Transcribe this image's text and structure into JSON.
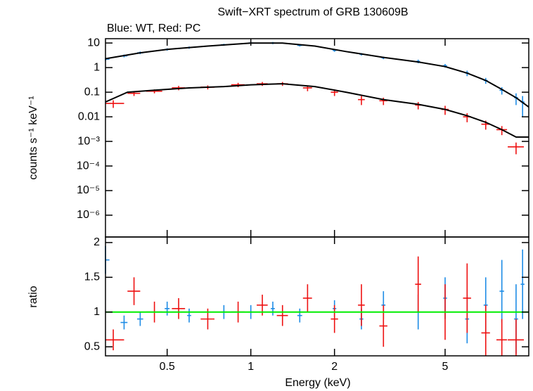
{
  "chart_data": [
    {
      "type": "scatter",
      "title": "Swift−XRT spectrum of GRB 130609B",
      "subtitle": "Blue: WT, Red: PC",
      "ylabel": "counts s⁻¹ keV⁻¹",
      "log_x": true,
      "log_y": true,
      "xlim": [
        0.3,
        10
      ],
      "ylim": [
        1.3e-07,
        15
      ],
      "xticks": [
        0.5,
        1,
        2,
        5
      ],
      "yticks": [
        10,
        1,
        0.1,
        0.01,
        {
          "value": 0.001,
          "label": "10⁻³"
        },
        {
          "value": 0.0001,
          "label": "10⁻⁴"
        },
        {
          "value": 1e-05,
          "label": "10⁻⁵"
        },
        {
          "value": 1e-06,
          "label": "10⁻⁶"
        }
      ],
      "series": [
        {
          "color": "#1e8ce6",
          "x": [
            0.3,
            0.35,
            0.4,
            0.5,
            0.6,
            0.8,
            1.0,
            1.2,
            1.5,
            2,
            2.5,
            3,
            4,
            5,
            6,
            7,
            8,
            9,
            9.5
          ],
          "xerr": [
            0.01,
            0.01,
            0.01,
            0.01,
            0.01,
            0.02,
            0.02,
            0.02,
            0.03,
            0.03,
            0.04,
            0.05,
            0.06,
            0.08,
            0.1,
            0.12,
            0.15,
            0.15,
            0.15
          ],
          "values": [
            2.2,
            3,
            4,
            5.5,
            6.5,
            8.5,
            10,
            10,
            8,
            5,
            3.5,
            2.5,
            1.8,
            1.2,
            0.6,
            0.3,
            0.12,
            0.06,
            0.04
          ],
          "errors": [
            0.3,
            0.4,
            0.5,
            0.6,
            0.7,
            0.8,
            1,
            1,
            0.8,
            0.6,
            0.4,
            0.3,
            0.3,
            0.2,
            0.15,
            0.08,
            0.04,
            0.03,
            0.03
          ]
        },
        {
          "color": "#ee1111",
          "x": [
            0.32,
            0.38,
            0.45,
            0.55,
            0.7,
            0.9,
            1.1,
            1.3,
            1.6,
            2,
            2.5,
            3,
            4,
            5,
            6,
            7,
            8,
            9
          ],
          "xerr": [
            0.03,
            0.02,
            0.03,
            0.03,
            0.04,
            0.05,
            0.05,
            0.06,
            0.06,
            0.06,
            0.07,
            0.1,
            0.1,
            0.15,
            0.2,
            0.25,
            0.35,
            0.6
          ],
          "values": [
            0.035,
            0.09,
            0.11,
            0.15,
            0.16,
            0.2,
            0.22,
            0.22,
            0.15,
            0.1,
            0.05,
            0.045,
            0.03,
            0.02,
            0.01,
            0.005,
            0.003,
            0.0006
          ],
          "errors": [
            0.012,
            0.02,
            0.02,
            0.03,
            0.03,
            0.04,
            0.04,
            0.04,
            0.04,
            0.03,
            0.02,
            0.015,
            0.01,
            0.008,
            0.004,
            0.002,
            0.0012,
            0.0003
          ]
        },
        {
          "type": "line",
          "color": "#000000",
          "x": [
            0.3,
            0.4,
            0.5,
            0.7,
            1,
            1.3,
            1.7,
            2.2,
            3,
            4,
            5,
            6,
            7,
            8,
            9,
            10
          ],
          "values": [
            2.3,
            4,
            5.5,
            7.5,
            10,
            10,
            7.5,
            4.5,
            2.6,
            1.7,
            1.1,
            0.6,
            0.3,
            0.13,
            0.06,
            0.025
          ]
        },
        {
          "type": "line",
          "color": "#000000",
          "x": [
            0.3,
            0.36,
            0.45,
            0.6,
            0.8,
            1,
            1.3,
            1.7,
            2.2,
            3,
            4,
            5,
            6,
            7,
            8,
            9,
            10
          ],
          "values": [
            0.04,
            0.1,
            0.12,
            0.15,
            0.17,
            0.2,
            0.22,
            0.17,
            0.1,
            0.05,
            0.032,
            0.02,
            0.011,
            0.006,
            0.003,
            0.0015,
            0.0015
          ]
        }
      ]
    },
    {
      "type": "scatter",
      "xlabel": "Energy (keV)",
      "ylabel": "ratio",
      "log_x": true,
      "log_y": false,
      "xlim": [
        0.3,
        10
      ],
      "ylim": [
        0.37,
        2.08
      ],
      "xticks": [
        0.5,
        1,
        2,
        5
      ],
      "yticks": [
        0.5,
        1,
        1.5,
        2
      ],
      "reference": 1,
      "reference_color": "#00ee00",
      "series": [
        {
          "color": "#1e8ce6",
          "x": [
            0.3,
            0.35,
            0.4,
            0.5,
            0.6,
            0.8,
            1.0,
            1.2,
            1.5,
            2,
            2.5,
            3,
            4,
            5,
            6,
            7,
            8,
            9,
            9.5
          ],
          "xerr": [
            0.01,
            0.01,
            0.01,
            0.01,
            0.01,
            0.02,
            0.02,
            0.02,
            0.03,
            0.03,
            0.04,
            0.05,
            0.06,
            0.08,
            0.1,
            0.12,
            0.15,
            0.15,
            0.15
          ],
          "values": [
            1.75,
            0.85,
            0.9,
            1.05,
            0.95,
            1.0,
            1.0,
            1.05,
            0.95,
            1.05,
            0.9,
            1.1,
            1.0,
            1.2,
            0.9,
            1.1,
            1.3,
            0.9,
            1.4
          ],
          "errors": [
            0.2,
            0.1,
            0.1,
            0.1,
            0.1,
            0.1,
            0.1,
            0.1,
            0.1,
            0.12,
            0.15,
            0.2,
            0.25,
            0.3,
            0.35,
            0.4,
            0.45,
            0.5,
            0.5
          ]
        },
        {
          "color": "#ee1111",
          "x": [
            0.32,
            0.38,
            0.45,
            0.55,
            0.7,
            0.9,
            1.1,
            1.3,
            1.6,
            2,
            2.5,
            3,
            4,
            5,
            6,
            7,
            8,
            9
          ],
          "xerr": [
            0.03,
            0.02,
            0.03,
            0.03,
            0.04,
            0.05,
            0.05,
            0.06,
            0.06,
            0.06,
            0.07,
            0.1,
            0.1,
            0.15,
            0.2,
            0.25,
            0.35,
            0.6
          ],
          "values": [
            0.6,
            1.3,
            1.0,
            1.05,
            0.9,
            1.0,
            1.1,
            0.95,
            1.2,
            0.9,
            1.1,
            0.8,
            1.4,
            1.0,
            1.2,
            0.7,
            0.6,
            0.6
          ],
          "errors": [
            0.15,
            0.2,
            0.15,
            0.15,
            0.15,
            0.15,
            0.15,
            0.15,
            0.2,
            0.2,
            0.3,
            0.3,
            0.4,
            0.4,
            0.5,
            0.4,
            0.3,
            0.3
          ]
        }
      ]
    }
  ]
}
